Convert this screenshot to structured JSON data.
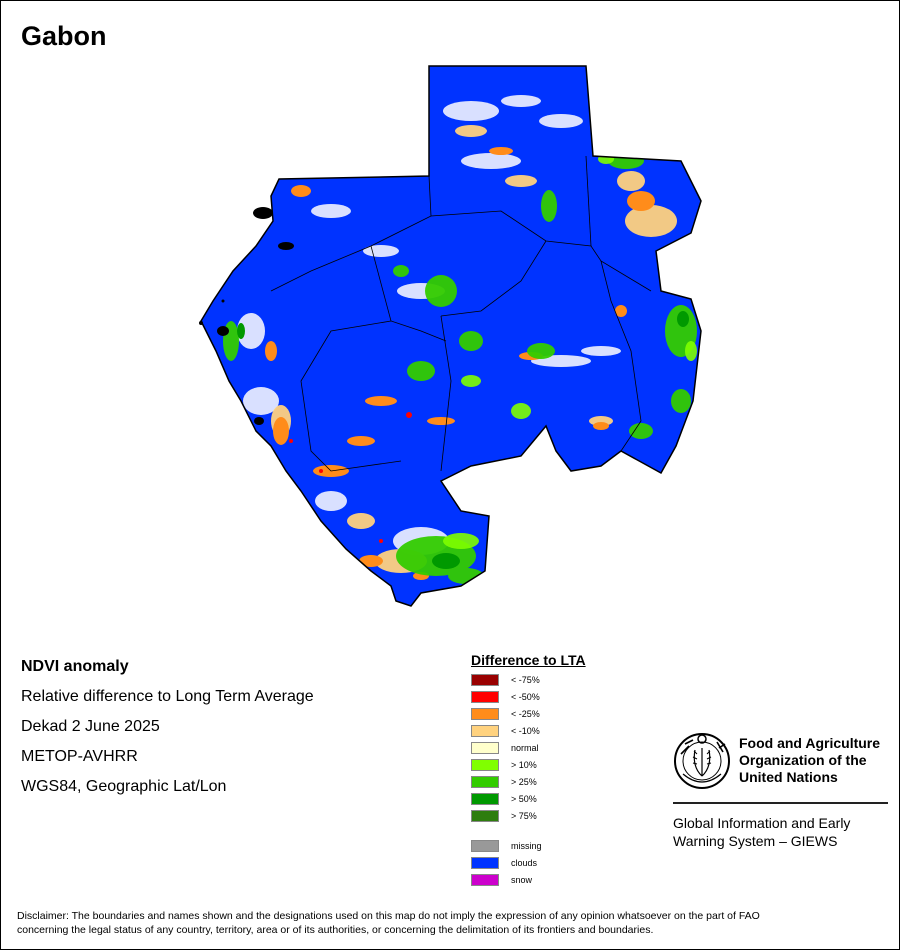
{
  "map": {
    "title": "Gabon"
  },
  "info": {
    "lines": [
      "NDVI anomaly",
      "Relative difference to Long Term Average",
      "Dekad 2 June 2025",
      "METOP-AVHRR",
      "WGS84, Geographic Lat/Lon"
    ]
  },
  "legend": {
    "title": "Difference to LTA",
    "items": [
      {
        "label": "< -75%",
        "color": "#990000"
      },
      {
        "label": "< -50%",
        "color": "#ff0000"
      },
      {
        "label": "< -25%",
        "color": "#ff8c1a"
      },
      {
        "label": "< -10%",
        "color": "#ffd27f"
      },
      {
        "label": "normal",
        "color": "#ffffcc"
      },
      {
        "label": "> 10%",
        "color": "#80ff00"
      },
      {
        "label": "> 25%",
        "color": "#33cc00"
      },
      {
        "label": "> 50%",
        "color": "#009900"
      },
      {
        "label": "> 75%",
        "color": "#2e7d0e"
      }
    ],
    "extra": [
      {
        "label": "missing",
        "color": "#999999"
      },
      {
        "label": "clouds",
        "color": "#0033ff"
      },
      {
        "label": "snow",
        "color": "#cc00cc"
      }
    ]
  },
  "fao": {
    "org_line1": "Food and Agriculture",
    "org_line2": "Organization of the",
    "org_line3": "United Nations",
    "giews_line1": "Global Information and Early",
    "giews_line2": "Warning System – GIEWS"
  },
  "disclaimer": {
    "line1": "Disclaimer: The boundaries and names shown and the designations used on this map do not imply the expression of any opinion whatsoever on the part of FAO",
    "line2": "concerning the legal status of any country, territory, area or of its authorities, or concerning the delimitation of its frontiers and boundaries."
  }
}
